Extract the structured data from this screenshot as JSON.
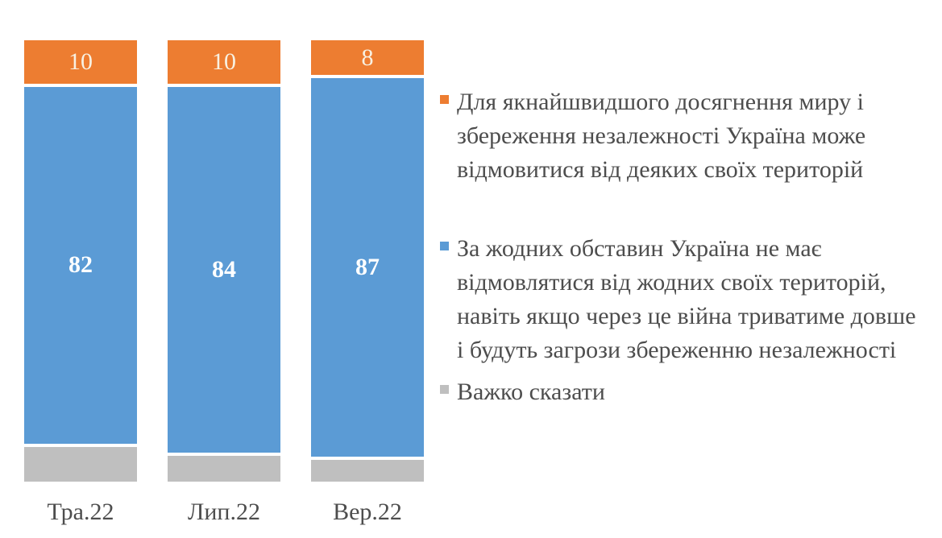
{
  "chart_data": {
    "type": "bar",
    "subtype": "stacked-100-percent",
    "title": "",
    "xlabel": "",
    "ylabel": "",
    "ylim": [
      0,
      100
    ],
    "grid": false,
    "legend_position": "right",
    "categories": [
      "Тра.22",
      "Лип.22",
      "Вер.22"
    ],
    "series": [
      {
        "key": "concede-territories",
        "name": "Для якнайшвидшого досягнення миру і збереження незалежності Україна може відмовитися від деяких своїх територій",
        "color": "#ED7D31",
        "values": [
          10,
          10,
          8
        ],
        "show_value_labels": true,
        "label_style": "regular",
        "label_color": "#F8F1E2"
      },
      {
        "key": "no-concessions",
        "name": "За жодних обставин Україна не має відмовлятися від жодних своїх територій, навіть якщо через це війна триватиме довше і будуть загрози збереженню незалежності",
        "color": "#5B9BD5",
        "values": [
          82,
          84,
          87
        ],
        "show_value_labels": true,
        "label_style": "bold",
        "label_color": "#FFFFFF"
      },
      {
        "key": "hard-to-say",
        "name": "Важко сказати",
        "color": "#BFBFBF",
        "values": [
          8,
          6,
          5
        ],
        "show_value_labels": false,
        "label_style": "regular",
        "label_color": "#FFFFFF"
      }
    ]
  },
  "legend": {
    "items": [
      {
        "label": "Для якнайшвидшого досягнення миру і\nзбереження незалежності Україна може\nвідмовитися від деяких своїх територій",
        "color": "#ED7D31"
      },
      {
        "label": "За жодних обставин Україна не має\nвідмовлятися від жодних своїх територій,\nнавіть якщо через це війна триватиме довше\nі будуть загрози збереженню незалежності",
        "color": "#5B9BD5"
      },
      {
        "label": "Важко сказати",
        "color": "#BFBFBF"
      }
    ]
  },
  "colors": {
    "background": "#FFFFFF",
    "text": "#4D4D4D",
    "segment_gap": "#FFFFFF"
  }
}
